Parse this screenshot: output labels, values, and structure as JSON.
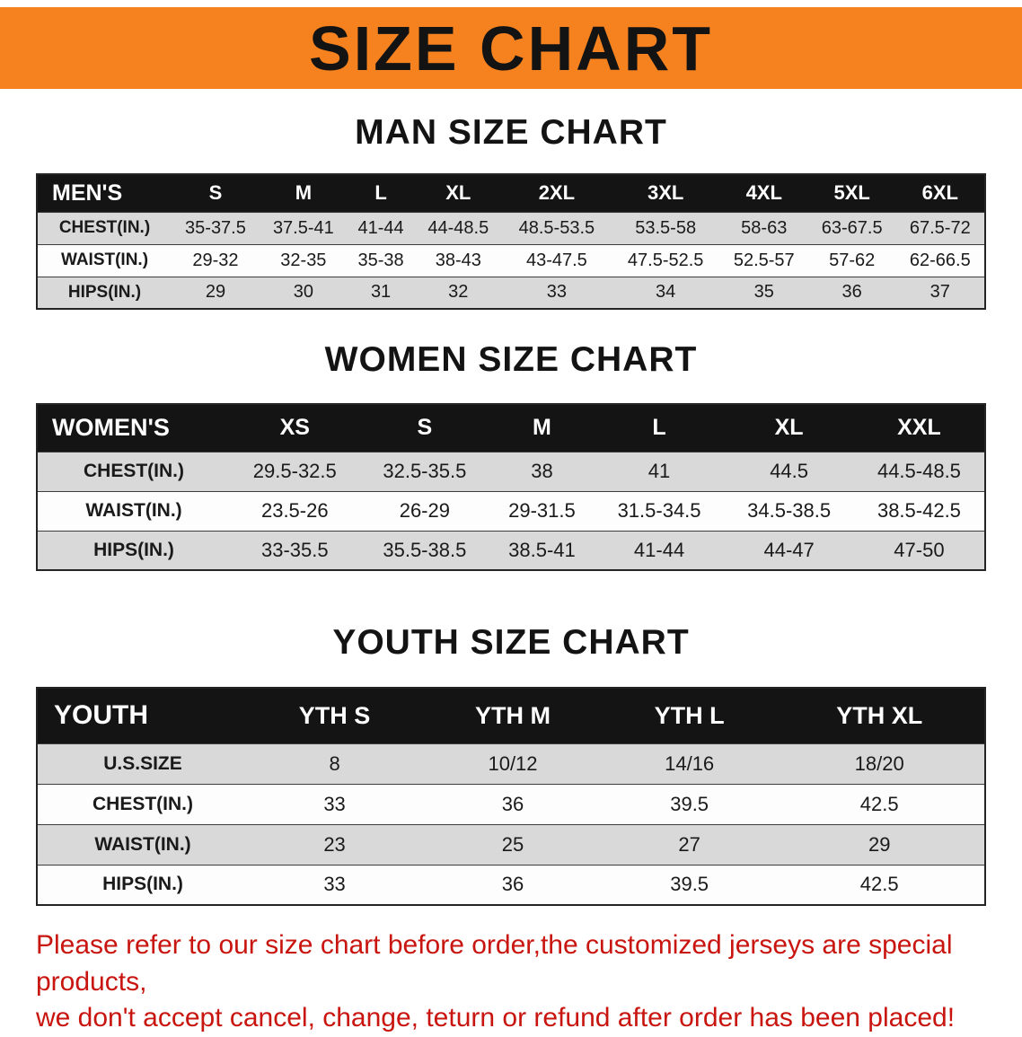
{
  "banner": {
    "title": "SIZE CHART",
    "background_color": "#f5821f",
    "text_color": "#131313"
  },
  "sections": [
    {
      "id": "men",
      "heading": "MAN SIZE CHART",
      "table": {
        "header": [
          "MEN'S",
          "S",
          "M",
          "L",
          "XL",
          "2XL",
          "3XL",
          "4XL",
          "5XL",
          "6XL"
        ],
        "rows": [
          [
            "CHEST(IN.)",
            "35-37.5",
            "37.5-41",
            "41-44",
            "44-48.5",
            "48.5-53.5",
            "53.5-58",
            "58-63",
            "63-67.5",
            "67.5-72"
          ],
          [
            "WAIST(IN.)",
            "29-32",
            "32-35",
            "35-38",
            "38-43",
            "43-47.5",
            "47.5-52.5",
            "52.5-57",
            "57-62",
            "62-66.5"
          ],
          [
            "HIPS(IN.)",
            "29",
            "30",
            "31",
            "32",
            "33",
            "34",
            "35",
            "36",
            "37"
          ]
        ]
      }
    },
    {
      "id": "women",
      "heading": "WOMEN SIZE CHART",
      "table": {
        "header": [
          "WOMEN'S",
          "XS",
          "S",
          "M",
          "L",
          "XL",
          "XXL"
        ],
        "rows": [
          [
            "CHEST(IN.)",
            "29.5-32.5",
            "32.5-35.5",
            "38",
            "41",
            "44.5",
            "44.5-48.5"
          ],
          [
            "WAIST(IN.)",
            "23.5-26",
            "26-29",
            "29-31.5",
            "31.5-34.5",
            "34.5-38.5",
            "38.5-42.5"
          ],
          [
            "HIPS(IN.)",
            "33-35.5",
            "35.5-38.5",
            "38.5-41",
            "41-44",
            "44-47",
            "47-50"
          ]
        ]
      }
    },
    {
      "id": "youth",
      "heading": "YOUTH SIZE CHART",
      "table": {
        "header": [
          "YOUTH",
          "YTH S",
          "YTH M",
          "YTH L",
          "YTH XL"
        ],
        "rows": [
          [
            "U.S.SIZE",
            "8",
            "10/12",
            "14/16",
            "18/20"
          ],
          [
            "CHEST(IN.)",
            "33",
            "36",
            "39.5",
            "42.5"
          ],
          [
            "WAIST(IN.)",
            "23",
            "25",
            "27",
            "29"
          ],
          [
            "HIPS(IN.)",
            "33",
            "36",
            "39.5",
            "42.5"
          ]
        ]
      }
    }
  ],
  "disclaimer": {
    "line1": "Please refer to our size chart before order,the customized jerseys are special products,",
    "line2": "we don't accept cancel, change, teturn or refund after order has been placed!",
    "text_color": "#c9150f"
  },
  "colors": {
    "banner_orange": "#f5821f",
    "table_header_bg": "#141414",
    "table_header_text": "#ffffff",
    "stripe_gray": "#d9d9d9",
    "stripe_white": "#fdfdfd",
    "heading_black": "#131313"
  }
}
